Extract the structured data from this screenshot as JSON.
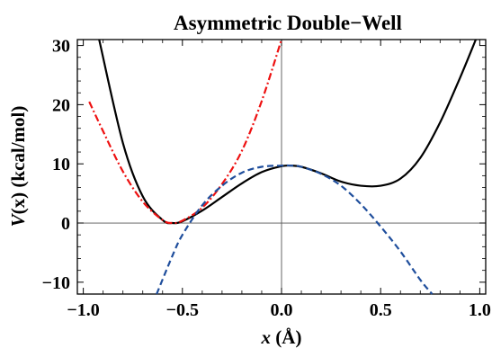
{
  "chart_data": {
    "type": "line",
    "title": "Asymmetric Double−Well",
    "xlabel_var": "x",
    "xlabel_unit": " (Å)",
    "ylabel_var": "V",
    "ylabel_arg": "(x)",
    "ylabel_unit": " (kcal/mol)",
    "xlim": [
      -1.03,
      1.03
    ],
    "ylim": [
      -12,
      31
    ],
    "x_ticks": [
      {
        "value": -1.0,
        "label": "−1.0"
      },
      {
        "value": -0.5,
        "label": "−0.5"
      },
      {
        "value": 0.0,
        "label": "0.0"
      },
      {
        "value": 0.5,
        "label": "0.5"
      },
      {
        "value": 1.0,
        "label": "1.0"
      }
    ],
    "y_ticks": [
      {
        "value": -10,
        "label": "−10"
      },
      {
        "value": 0,
        "label": "0"
      },
      {
        "value": 10,
        "label": "10"
      },
      {
        "value": 20,
        "label": "20"
      },
      {
        "value": 30,
        "label": "30"
      }
    ],
    "series": [
      {
        "style": "solid",
        "color": "#000000",
        "x": [
          -0.92,
          -0.8,
          -0.7,
          -0.6,
          -0.55,
          -0.5,
          -0.4,
          -0.3,
          -0.2,
          -0.1,
          0.0,
          0.05,
          0.1,
          0.2,
          0.3,
          0.4,
          0.5,
          0.6,
          0.7,
          0.8,
          0.9,
          0.98
        ],
        "y": [
          31,
          13.5,
          4.5,
          0.5,
          0.0,
          0.3,
          2.1,
          4.4,
          6.7,
          8.6,
          9.6,
          9.7,
          9.5,
          8.4,
          7.0,
          6.3,
          6.3,
          7.5,
          11.0,
          17.0,
          24.5,
          31
        ]
      },
      {
        "style": "dashdot",
        "color": "#ee1111",
        "x": [
          -0.97,
          -0.9,
          -0.8,
          -0.7,
          -0.6,
          -0.55,
          -0.5,
          -0.4,
          -0.3,
          -0.2,
          -0.1,
          0.0
        ],
        "y": [
          20.5,
          15.5,
          8.7,
          3.6,
          0.5,
          0.0,
          0.4,
          2.6,
          6.6,
          12.2,
          20.6,
          31
        ]
      },
      {
        "style": "dashed",
        "color": "#1f4e9c",
        "x": [
          -0.63,
          -0.55,
          -0.5,
          -0.4,
          -0.3,
          -0.2,
          -0.1,
          0.0,
          0.05,
          0.1,
          0.2,
          0.3,
          0.4,
          0.5,
          0.6,
          0.7,
          0.76
        ],
        "y": [
          -12,
          -5.5,
          -2.0,
          3.0,
          6.3,
          8.5,
          9.5,
          9.7,
          9.7,
          9.5,
          8.3,
          6.3,
          3.2,
          -0.6,
          -4.8,
          -9.6,
          -12
        ]
      }
    ]
  }
}
